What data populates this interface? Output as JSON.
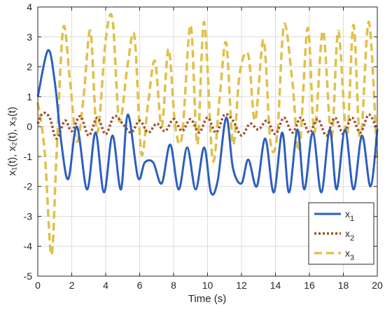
{
  "chart_data": {
    "type": "line",
    "title": "",
    "xlabel": "Time (s)",
    "ylabel": "x₁(t), x₂(t), x₃(t)",
    "xlim": [
      0,
      20
    ],
    "ylim": [
      -5,
      4
    ],
    "xticks": [
      "0",
      "2",
      "4",
      "6",
      "8",
      "10",
      "12",
      "14",
      "16",
      "18",
      "20"
    ],
    "yticks": [
      "-5",
      "-4",
      "-3",
      "-2",
      "-1",
      "0",
      "1",
      "2",
      "3",
      "4"
    ],
    "grid": true,
    "legend_position": "bottom-right",
    "series": [
      {
        "name": "x₁",
        "legend_base": "x",
        "legend_sub": "1",
        "color": "#2B5FBF",
        "style": "solid",
        "x": [
          0,
          0.6,
          1.0,
          1.4,
          1.8,
          2.3,
          2.9,
          3.4,
          3.9,
          4.4,
          4.9,
          5.3,
          5.9,
          6.3,
          6.8,
          7.3,
          7.8,
          8.3,
          8.8,
          9.3,
          9.8,
          10.2,
          10.6,
          11.1,
          11.5,
          12.0,
          12.4,
          12.9,
          13.4,
          13.9,
          14.4,
          14.8,
          15.3,
          15.7,
          16.2,
          16.7,
          17.2,
          17.6,
          18.1,
          18.6,
          19.1,
          19.6,
          20
        ],
        "y": [
          1.0,
          2.55,
          1.5,
          -0.6,
          -1.75,
          0,
          -2.1,
          -0.2,
          -2.2,
          -0.3,
          -2.1,
          0.4,
          -1.7,
          -1.2,
          -1.2,
          -1.9,
          -0.6,
          -2.1,
          -0.7,
          -2.1,
          -0.7,
          -2.2,
          -1.8,
          0.3,
          -1.4,
          -1.9,
          -1.1,
          -2.0,
          -0.4,
          -2.2,
          -0.2,
          -2.2,
          -0.1,
          -2.1,
          -0.2,
          -2.2,
          -0.1,
          -2.1,
          -0.1,
          -2.1,
          -0.3,
          -2.0,
          -0.1
        ]
      },
      {
        "name": "x₂",
        "legend_base": "x",
        "legend_sub": "2",
        "color": "#A0522D",
        "style": "dotted",
        "x": [
          0,
          0.3,
          0.7,
          1.1,
          1.6,
          2.0,
          2.5,
          3.0,
          3.5,
          4.0,
          4.5,
          5.0,
          5.5,
          6.0,
          6.5,
          7.0,
          7.5,
          8.0,
          8.5,
          9.0,
          9.5,
          10.0,
          10.5,
          11.0,
          11.5,
          12.0,
          12.5,
          13.0,
          13.5,
          14.0,
          14.5,
          15.0,
          15.5,
          16.0,
          16.5,
          17.0,
          17.5,
          18.0,
          18.5,
          19.0,
          19.5,
          20
        ],
        "y": [
          0.1,
          0.45,
          0.3,
          -0.4,
          0.2,
          -0.15,
          0.35,
          -0.3,
          0.3,
          -0.25,
          0.35,
          0.1,
          -0.2,
          0.2,
          -0.2,
          0.1,
          -0.15,
          0.25,
          -0.15,
          0.25,
          -0.2,
          0.3,
          -0.2,
          0.4,
          0.2,
          -0.3,
          0.1,
          -0.1,
          0.2,
          -0.25,
          0.3,
          -0.2,
          0.3,
          -0.2,
          0.25,
          -0.3,
          0.3,
          -0.25,
          0.3,
          -0.2,
          0.4,
          -0.1
        ]
      },
      {
        "name": "x₃",
        "legend_base": "x",
        "legend_sub": "3",
        "color": "#E0C04A",
        "style": "dashed",
        "x": [
          0,
          0.4,
          0.8,
          1.1,
          1.5,
          1.9,
          2.3,
          2.7,
          3.1,
          3.5,
          4.0,
          4.4,
          4.8,
          5.3,
          5.7,
          6.1,
          6.5,
          6.9,
          7.3,
          7.7,
          8.1,
          8.5,
          9.0,
          9.4,
          9.8,
          10.3,
          10.7,
          11.1,
          11.5,
          11.9,
          12.4,
          12.8,
          13.3,
          13.7,
          14.1,
          14.5,
          15.0,
          15.4,
          15.9,
          16.3,
          16.8,
          17.3,
          17.7,
          18.2,
          18.6,
          19.0,
          19.5,
          20
        ],
        "y": [
          0.8,
          -0.8,
          -4.3,
          -1.0,
          3.3,
          1.5,
          -0.5,
          1.0,
          3.2,
          -0.2,
          2.9,
          3.6,
          0.2,
          2.1,
          3.0,
          -0.9,
          0.8,
          2.2,
          0.0,
          2.6,
          0.0,
          -0.3,
          3.4,
          -0.6,
          3.5,
          -1.1,
          0.9,
          2.8,
          -0.6,
          1.8,
          2.4,
          0.2,
          2.9,
          -0.5,
          -0.3,
          3.4,
          1.5,
          -0.8,
          3.3,
          -0.2,
          3.2,
          -0.4,
          3.2,
          -0.3,
          3.4,
          -0.5,
          3.5,
          -1.2
        ]
      }
    ]
  }
}
